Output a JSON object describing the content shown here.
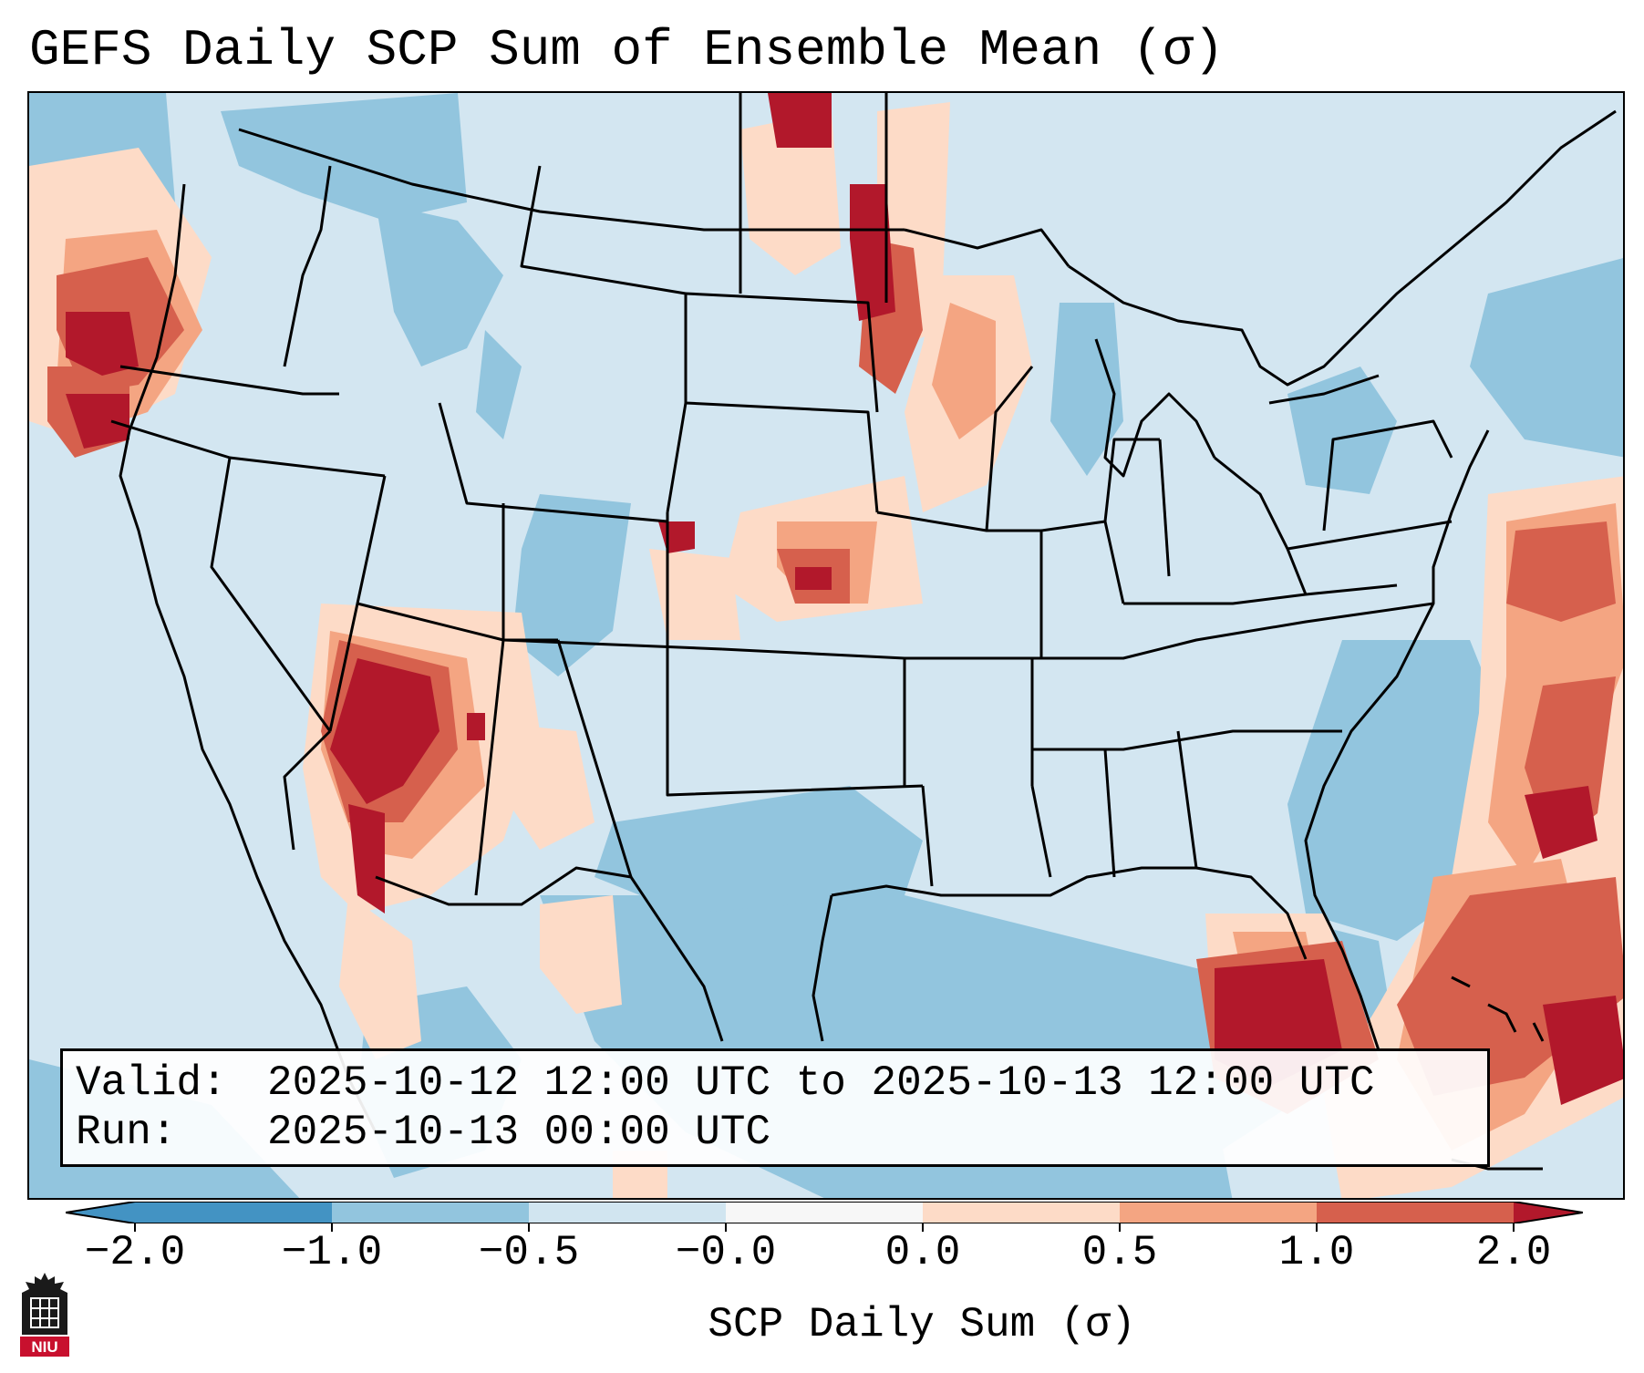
{
  "title": "GEFS Daily SCP Sum of Ensemble Mean (σ)",
  "info": {
    "valid_key": "Valid:",
    "valid_value": "2025-10-12 12:00 UTC to 2025-10-13 12:00 UTC",
    "run_key": "Run:",
    "run_value": "2025-10-13 00:00 UTC"
  },
  "colorbar": {
    "label": "SCP Daily Sum (σ)",
    "ticks": [
      "−2.0",
      "−1.0",
      "−0.5",
      "−0.0",
      "0.0",
      "0.5",
      "1.0",
      "2.0"
    ],
    "colors": {
      "under": "#4393c3",
      "b1": "#4393c3",
      "b2": "#92c5de",
      "b3": "#d1e5f0",
      "b4": "#f7f7f7",
      "b5": "#fddbc7",
      "b6": "#f4a582",
      "b7": "#d6604d",
      "over": "#b2182b"
    }
  },
  "logo": {
    "text": "NIU"
  },
  "map_palette": {
    "background": "#d3e6f1",
    "neg_mid": "#92c5de",
    "pos_light": "#fddbc7",
    "pos_mid": "#f4a582",
    "pos_strong": "#d6604d",
    "pos_max": "#b2182b"
  }
}
